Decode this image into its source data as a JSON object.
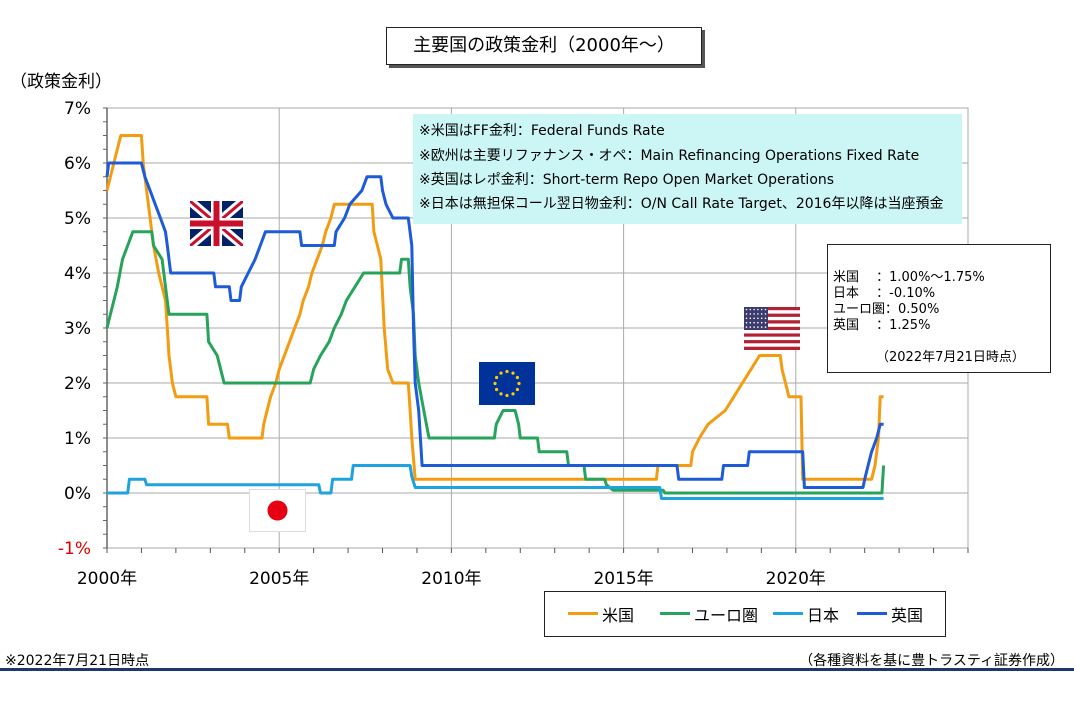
{
  "title": "主要国の政策金利（2000年～）",
  "y_axis_label": "（政策金利）",
  "notes": [
    "※米国はFF金利：Federal Funds Rate",
    "※欧州は主要リファナンス・オペ：Main Refinancing Operations Fixed Rate",
    "※英国はレポ金利：Short-term Repo Open Market Operations",
    "※日本は無担保コール翌日物金利：O/N Call Rate Target、2016年以降は当座預金"
  ],
  "current_rates": {
    "rows": [
      "米国　  ：1.00%～1.75%",
      "日本　  ：-0.10%",
      "ユーロ圏：0.50%",
      "英国　  ：1.25%"
    ],
    "as_of": "（2022年7月21日時点）"
  },
  "footnote": "※2022年7月21日時点",
  "source": "（各種資料を基に豊トラスティ証券作成）",
  "flags": {
    "uk": "uk-flag-icon",
    "jp": "japan-flag-icon",
    "eu": "eu-flag-icon",
    "us": "us-flag-icon"
  },
  "chart_data": {
    "type": "line",
    "title": "主要国の政策金利（2000年～）",
    "ylabel": "（政策金利）",
    "xlabel": "",
    "xlim": [
      2000,
      2025
    ],
    "ylim": [
      -1,
      7
    ],
    "grid": true,
    "legend_position": "bottom-right",
    "x_ticks": [
      {
        "value": 2000,
        "label": "2000年"
      },
      {
        "value": 2005,
        "label": "2005年"
      },
      {
        "value": 2010,
        "label": "2010年"
      },
      {
        "value": 2015,
        "label": "2015年"
      },
      {
        "value": 2020,
        "label": "2020年"
      }
    ],
    "y_ticks": [
      {
        "value": 7,
        "label": "7%"
      },
      {
        "value": 6,
        "label": "6%"
      },
      {
        "value": 5,
        "label": "5%"
      },
      {
        "value": 4,
        "label": "4%"
      },
      {
        "value": 3,
        "label": "3%"
      },
      {
        "value": 2,
        "label": "2%"
      },
      {
        "value": 1,
        "label": "1%"
      },
      {
        "value": 0,
        "label": "0%"
      },
      {
        "value": -1,
        "label": "-1%"
      }
    ],
    "series": [
      {
        "name": "米国",
        "color": "#f39c12",
        "points": [
          [
            2000.0,
            5.5
          ],
          [
            2000.1,
            5.75
          ],
          [
            2000.2,
            6.0
          ],
          [
            2000.3,
            6.25
          ],
          [
            2000.4,
            6.5
          ],
          [
            2001.0,
            6.5
          ],
          [
            2001.05,
            6.0
          ],
          [
            2001.15,
            5.5
          ],
          [
            2001.25,
            5.0
          ],
          [
            2001.35,
            4.5
          ],
          [
            2001.5,
            4.0
          ],
          [
            2001.6,
            3.75
          ],
          [
            2001.7,
            3.5
          ],
          [
            2001.75,
            3.0
          ],
          [
            2001.8,
            2.5
          ],
          [
            2001.9,
            2.0
          ],
          [
            2002.0,
            1.75
          ],
          [
            2002.9,
            1.75
          ],
          [
            2002.95,
            1.25
          ],
          [
            2003.5,
            1.25
          ],
          [
            2003.55,
            1.0
          ],
          [
            2004.5,
            1.0
          ],
          [
            2004.55,
            1.25
          ],
          [
            2004.65,
            1.5
          ],
          [
            2004.75,
            1.75
          ],
          [
            2004.9,
            2.0
          ],
          [
            2005.0,
            2.25
          ],
          [
            2005.15,
            2.5
          ],
          [
            2005.3,
            2.75
          ],
          [
            2005.45,
            3.0
          ],
          [
            2005.6,
            3.25
          ],
          [
            2005.7,
            3.5
          ],
          [
            2005.85,
            3.75
          ],
          [
            2005.95,
            4.0
          ],
          [
            2006.1,
            4.25
          ],
          [
            2006.25,
            4.5
          ],
          [
            2006.35,
            4.75
          ],
          [
            2006.5,
            5.0
          ],
          [
            2006.6,
            5.25
          ],
          [
            2007.7,
            5.25
          ],
          [
            2007.75,
            4.75
          ],
          [
            2007.85,
            4.5
          ],
          [
            2007.95,
            4.25
          ],
          [
            2008.05,
            3.0
          ],
          [
            2008.15,
            2.25
          ],
          [
            2008.3,
            2.0
          ],
          [
            2008.75,
            2.0
          ],
          [
            2008.8,
            1.5
          ],
          [
            2008.85,
            1.0
          ],
          [
            2008.95,
            0.25
          ],
          [
            2015.95,
            0.25
          ],
          [
            2016.0,
            0.5
          ],
          [
            2016.95,
            0.5
          ],
          [
            2017.0,
            0.75
          ],
          [
            2017.2,
            1.0
          ],
          [
            2017.45,
            1.25
          ],
          [
            2017.95,
            1.5
          ],
          [
            2018.2,
            1.75
          ],
          [
            2018.45,
            2.0
          ],
          [
            2018.7,
            2.25
          ],
          [
            2018.95,
            2.5
          ],
          [
            2019.55,
            2.5
          ],
          [
            2019.6,
            2.25
          ],
          [
            2019.7,
            2.0
          ],
          [
            2019.8,
            1.75
          ],
          [
            2020.15,
            1.75
          ],
          [
            2020.2,
            0.25
          ],
          [
            2022.2,
            0.25
          ],
          [
            2022.3,
            0.5
          ],
          [
            2022.4,
            1.0
          ],
          [
            2022.45,
            1.75
          ],
          [
            2022.55,
            1.75
          ]
        ]
      },
      {
        "name": "ユーロ圏",
        "color": "#27a35a",
        "points": [
          [
            2000.0,
            3.0
          ],
          [
            2000.1,
            3.25
          ],
          [
            2000.2,
            3.5
          ],
          [
            2000.3,
            3.75
          ],
          [
            2000.45,
            4.25
          ],
          [
            2000.6,
            4.5
          ],
          [
            2000.75,
            4.75
          ],
          [
            2001.3,
            4.75
          ],
          [
            2001.35,
            4.5
          ],
          [
            2001.6,
            4.25
          ],
          [
            2001.7,
            3.75
          ],
          [
            2001.8,
            3.25
          ],
          [
            2002.9,
            3.25
          ],
          [
            2002.95,
            2.75
          ],
          [
            2003.2,
            2.5
          ],
          [
            2003.4,
            2.0
          ],
          [
            2005.9,
            2.0
          ],
          [
            2006.0,
            2.25
          ],
          [
            2006.2,
            2.5
          ],
          [
            2006.45,
            2.75
          ],
          [
            2006.6,
            3.0
          ],
          [
            2006.8,
            3.25
          ],
          [
            2006.95,
            3.5
          ],
          [
            2007.2,
            3.75
          ],
          [
            2007.45,
            4.0
          ],
          [
            2008.5,
            4.0
          ],
          [
            2008.55,
            4.25
          ],
          [
            2008.75,
            4.25
          ],
          [
            2008.8,
            3.75
          ],
          [
            2008.9,
            3.25
          ],
          [
            2008.95,
            2.5
          ],
          [
            2009.05,
            2.0
          ],
          [
            2009.2,
            1.5
          ],
          [
            2009.35,
            1.0
          ],
          [
            2011.25,
            1.0
          ],
          [
            2011.3,
            1.25
          ],
          [
            2011.5,
            1.5
          ],
          [
            2011.85,
            1.5
          ],
          [
            2011.95,
            1.25
          ],
          [
            2012.0,
            1.0
          ],
          [
            2012.5,
            1.0
          ],
          [
            2012.55,
            0.75
          ],
          [
            2013.35,
            0.75
          ],
          [
            2013.4,
            0.5
          ],
          [
            2013.85,
            0.5
          ],
          [
            2013.9,
            0.25
          ],
          [
            2014.45,
            0.25
          ],
          [
            2014.5,
            0.15
          ],
          [
            2014.7,
            0.05
          ],
          [
            2016.15,
            0.05
          ],
          [
            2016.2,
            0.0
          ],
          [
            2022.5,
            0.0
          ],
          [
            2022.55,
            0.5
          ]
        ]
      },
      {
        "name": "日本",
        "color": "#1fa2e0",
        "points": [
          [
            2000.0,
            0.0
          ],
          [
            2000.6,
            0.0
          ],
          [
            2000.65,
            0.25
          ],
          [
            2001.1,
            0.25
          ],
          [
            2001.15,
            0.15
          ],
          [
            2006.15,
            0.15
          ],
          [
            2006.2,
            0.0
          ],
          [
            2006.5,
            0.0
          ],
          [
            2006.55,
            0.25
          ],
          [
            2007.1,
            0.25
          ],
          [
            2007.15,
            0.5
          ],
          [
            2008.8,
            0.5
          ],
          [
            2008.85,
            0.3
          ],
          [
            2008.95,
            0.1
          ],
          [
            2016.05,
            0.1
          ],
          [
            2016.1,
            -0.1
          ],
          [
            2022.55,
            -0.1
          ]
        ]
      },
      {
        "name": "英国",
        "color": "#1e5bd6",
        "points": [
          [
            2000.0,
            5.75
          ],
          [
            2000.05,
            6.0
          ],
          [
            2001.0,
            6.0
          ],
          [
            2001.1,
            5.75
          ],
          [
            2001.25,
            5.5
          ],
          [
            2001.4,
            5.25
          ],
          [
            2001.55,
            5.0
          ],
          [
            2001.7,
            4.75
          ],
          [
            2001.75,
            4.5
          ],
          [
            2001.85,
            4.0
          ],
          [
            2003.1,
            4.0
          ],
          [
            2003.15,
            3.75
          ],
          [
            2003.55,
            3.75
          ],
          [
            2003.6,
            3.5
          ],
          [
            2003.85,
            3.5
          ],
          [
            2003.9,
            3.75
          ],
          [
            2004.1,
            4.0
          ],
          [
            2004.3,
            4.25
          ],
          [
            2004.45,
            4.5
          ],
          [
            2004.6,
            4.75
          ],
          [
            2005.6,
            4.75
          ],
          [
            2005.65,
            4.5
          ],
          [
            2006.6,
            4.5
          ],
          [
            2006.65,
            4.75
          ],
          [
            2006.9,
            5.0
          ],
          [
            2007.05,
            5.25
          ],
          [
            2007.4,
            5.5
          ],
          [
            2007.55,
            5.75
          ],
          [
            2007.95,
            5.75
          ],
          [
            2008.0,
            5.5
          ],
          [
            2008.1,
            5.25
          ],
          [
            2008.3,
            5.0
          ],
          [
            2008.75,
            5.0
          ],
          [
            2008.85,
            4.5
          ],
          [
            2008.9,
            3.0
          ],
          [
            2008.95,
            2.0
          ],
          [
            2009.05,
            1.5
          ],
          [
            2009.1,
            1.0
          ],
          [
            2009.15,
            0.5
          ],
          [
            2016.55,
            0.5
          ],
          [
            2016.6,
            0.25
          ],
          [
            2017.85,
            0.25
          ],
          [
            2017.9,
            0.5
          ],
          [
            2018.6,
            0.5
          ],
          [
            2018.65,
            0.75
          ],
          [
            2020.2,
            0.75
          ],
          [
            2020.25,
            0.1
          ],
          [
            2021.95,
            0.1
          ],
          [
            2022.0,
            0.25
          ],
          [
            2022.1,
            0.5
          ],
          [
            2022.2,
            0.75
          ],
          [
            2022.35,
            1.0
          ],
          [
            2022.45,
            1.25
          ],
          [
            2022.55,
            1.25
          ]
        ]
      }
    ]
  }
}
